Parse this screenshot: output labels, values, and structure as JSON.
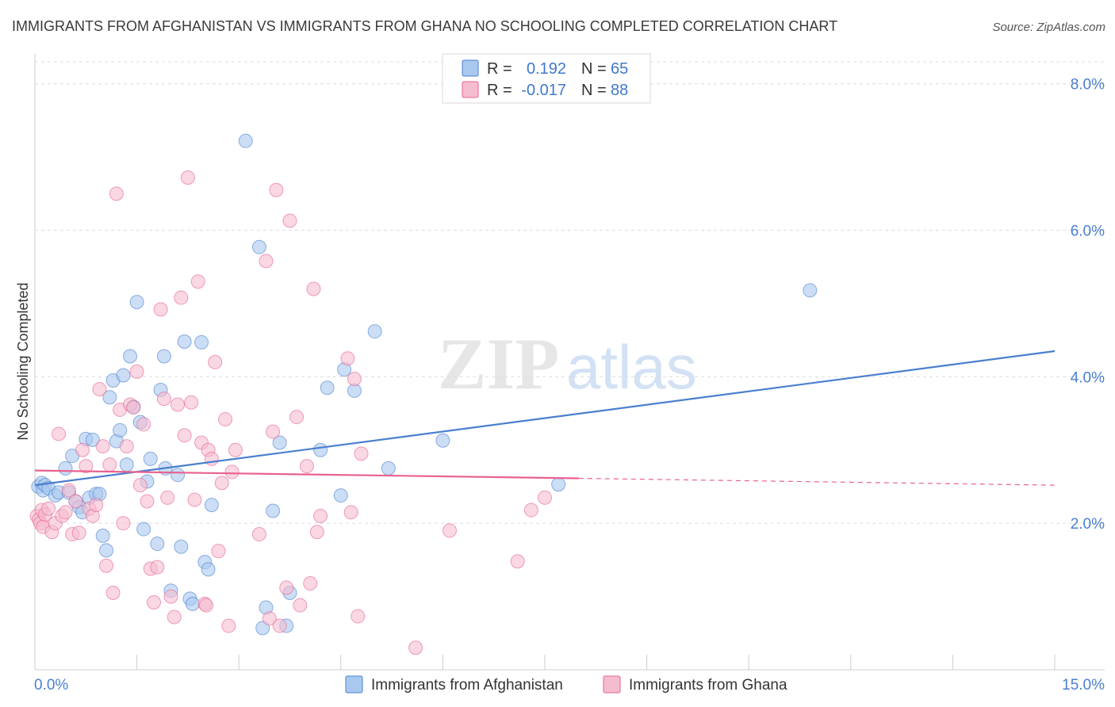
{
  "chart_data": {
    "type": "scatter",
    "title": "IMMIGRANTS FROM AFGHANISTAN VS IMMIGRANTS FROM GHANA NO SCHOOLING COMPLETED CORRELATION CHART",
    "source": "Source: ZipAtlas.com",
    "ylabel": "No Schooling Completed",
    "xlabel": "",
    "xlim": [
      0,
      15
    ],
    "ylim": [
      0,
      8.3
    ],
    "x_tick_labels": [
      "0.0%",
      "15.0%"
    ],
    "y_ticks": [
      2,
      4,
      6,
      8
    ],
    "y_tick_labels": [
      "2.0%",
      "4.0%",
      "6.0%",
      "8.0%"
    ],
    "grid": true,
    "watermark": {
      "zip": "ZIP",
      "atlas": "atlas"
    },
    "legend_position": "top-center",
    "legend": [
      {
        "r_label": "R =",
        "r_value": "0.192",
        "n_label": "N =",
        "n_value": "65"
      },
      {
        "r_label": "R =",
        "r_value": "-0.017",
        "n_label": "N =",
        "n_value": "88"
      }
    ],
    "series": [
      {
        "name": "Immigrants from Afghanistan",
        "color": "#4a7fd0",
        "fill": "#a9c8ef",
        "trend": {
          "x0": 0,
          "y0": 2.52,
          "x1": 15,
          "y1": 4.35,
          "dashed_from": null
        },
        "points": [
          [
            0.05,
            2.5
          ],
          [
            0.1,
            2.55
          ],
          [
            0.12,
            2.45
          ],
          [
            0.15,
            2.52
          ],
          [
            0.2,
            2.48
          ],
          [
            0.3,
            2.38
          ],
          [
            0.35,
            2.42
          ],
          [
            0.45,
            2.75
          ],
          [
            0.5,
            2.42
          ],
          [
            0.55,
            2.92
          ],
          [
            0.6,
            2.3
          ],
          [
            0.65,
            2.22
          ],
          [
            0.7,
            2.15
          ],
          [
            0.75,
            3.15
          ],
          [
            0.8,
            2.35
          ],
          [
            0.85,
            3.14
          ],
          [
            0.9,
            2.4
          ],
          [
            0.95,
            2.4
          ],
          [
            1.0,
            1.83
          ],
          [
            1.05,
            1.63
          ],
          [
            1.1,
            3.72
          ],
          [
            1.15,
            3.95
          ],
          [
            1.2,
            3.12
          ],
          [
            1.25,
            3.27
          ],
          [
            1.3,
            4.02
          ],
          [
            1.35,
            2.8
          ],
          [
            1.4,
            4.28
          ],
          [
            1.45,
            3.59
          ],
          [
            1.5,
            5.02
          ],
          [
            1.55,
            3.38
          ],
          [
            1.6,
            1.92
          ],
          [
            1.65,
            2.57
          ],
          [
            1.7,
            2.88
          ],
          [
            1.8,
            1.72
          ],
          [
            1.85,
            3.82
          ],
          [
            1.9,
            4.28
          ],
          [
            1.92,
            2.75
          ],
          [
            2.0,
            1.08
          ],
          [
            2.1,
            2.66
          ],
          [
            2.15,
            1.68
          ],
          [
            2.2,
            4.48
          ],
          [
            2.28,
            0.97
          ],
          [
            2.32,
            0.9
          ],
          [
            2.45,
            4.47
          ],
          [
            2.5,
            1.47
          ],
          [
            2.55,
            1.37
          ],
          [
            2.6,
            2.25
          ],
          [
            3.1,
            7.22
          ],
          [
            3.3,
            5.77
          ],
          [
            3.35,
            0.57
          ],
          [
            3.4,
            0.85
          ],
          [
            3.5,
            2.17
          ],
          [
            3.6,
            3.1
          ],
          [
            3.7,
            0.6
          ],
          [
            4.2,
            3.0
          ],
          [
            4.3,
            3.85
          ],
          [
            4.5,
            2.38
          ],
          [
            4.55,
            4.1
          ],
          [
            4.7,
            3.81
          ],
          [
            5.0,
            4.62
          ],
          [
            5.2,
            2.75
          ],
          [
            6.0,
            3.13
          ],
          [
            7.7,
            2.53
          ],
          [
            11.4,
            5.18
          ],
          [
            3.75,
            1.05
          ]
        ]
      },
      {
        "name": "Immigrants from Ghana",
        "color": "#e8628f",
        "fill": "#f5bcd0",
        "trend": {
          "x0": 0,
          "y0": 2.72,
          "x1": 15,
          "y1": 2.52,
          "dashed_from": 8.0
        },
        "points": [
          [
            0.03,
            2.1
          ],
          [
            0.06,
            2.05
          ],
          [
            0.08,
            2.0
          ],
          [
            0.1,
            2.18
          ],
          [
            0.12,
            1.95
          ],
          [
            0.15,
            2.12
          ],
          [
            0.2,
            2.2
          ],
          [
            0.25,
            1.88
          ],
          [
            0.3,
            2.0
          ],
          [
            0.35,
            3.22
          ],
          [
            0.4,
            2.1
          ],
          [
            0.45,
            2.15
          ],
          [
            0.5,
            2.45
          ],
          [
            0.55,
            1.85
          ],
          [
            0.6,
            2.3
          ],
          [
            0.65,
            1.87
          ],
          [
            0.7,
            3.0
          ],
          [
            0.75,
            2.78
          ],
          [
            0.8,
            2.2
          ],
          [
            0.85,
            2.1
          ],
          [
            0.9,
            2.25
          ],
          [
            0.95,
            3.83
          ],
          [
            1.0,
            3.05
          ],
          [
            1.05,
            1.42
          ],
          [
            1.1,
            2.8
          ],
          [
            1.15,
            1.05
          ],
          [
            1.2,
            6.5
          ],
          [
            1.25,
            3.55
          ],
          [
            1.3,
            2.0
          ],
          [
            1.35,
            3.05
          ],
          [
            1.4,
            3.62
          ],
          [
            1.45,
            3.58
          ],
          [
            1.5,
            4.07
          ],
          [
            1.55,
            2.52
          ],
          [
            1.6,
            3.35
          ],
          [
            1.65,
            2.3
          ],
          [
            1.7,
            1.38
          ],
          [
            1.75,
            0.92
          ],
          [
            1.8,
            1.4
          ],
          [
            1.85,
            4.92
          ],
          [
            1.9,
            3.7
          ],
          [
            1.95,
            2.35
          ],
          [
            2.0,
            1.0
          ],
          [
            2.05,
            0.72
          ],
          [
            2.1,
            3.62
          ],
          [
            2.15,
            5.08
          ],
          [
            2.2,
            3.2
          ],
          [
            2.25,
            6.72
          ],
          [
            2.3,
            3.65
          ],
          [
            2.35,
            2.32
          ],
          [
            2.4,
            5.3
          ],
          [
            2.45,
            3.1
          ],
          [
            2.5,
            0.9
          ],
          [
            2.55,
            3.0
          ],
          [
            2.6,
            2.88
          ],
          [
            2.65,
            4.2
          ],
          [
            2.7,
            1.62
          ],
          [
            2.75,
            2.55
          ],
          [
            2.8,
            3.42
          ],
          [
            2.85,
            0.6
          ],
          [
            2.9,
            2.7
          ],
          [
            2.95,
            3.0
          ],
          [
            3.3,
            1.85
          ],
          [
            3.4,
            5.58
          ],
          [
            3.45,
            0.7
          ],
          [
            3.5,
            3.25
          ],
          [
            3.55,
            6.55
          ],
          [
            3.6,
            0.6
          ],
          [
            3.7,
            1.12
          ],
          [
            3.75,
            6.13
          ],
          [
            3.85,
            3.45
          ],
          [
            3.9,
            0.88
          ],
          [
            4.0,
            2.78
          ],
          [
            4.05,
            1.18
          ],
          [
            4.1,
            5.2
          ],
          [
            4.15,
            1.88
          ],
          [
            4.2,
            2.1
          ],
          [
            4.6,
            4.25
          ],
          [
            4.65,
            2.15
          ],
          [
            4.7,
            3.97
          ],
          [
            4.75,
            0.73
          ],
          [
            4.8,
            2.95
          ],
          [
            5.6,
            0.3
          ],
          [
            6.1,
            1.9
          ],
          [
            7.1,
            1.48
          ],
          [
            7.3,
            2.18
          ],
          [
            7.5,
            2.35
          ],
          [
            2.52,
            0.88
          ]
        ]
      }
    ]
  }
}
